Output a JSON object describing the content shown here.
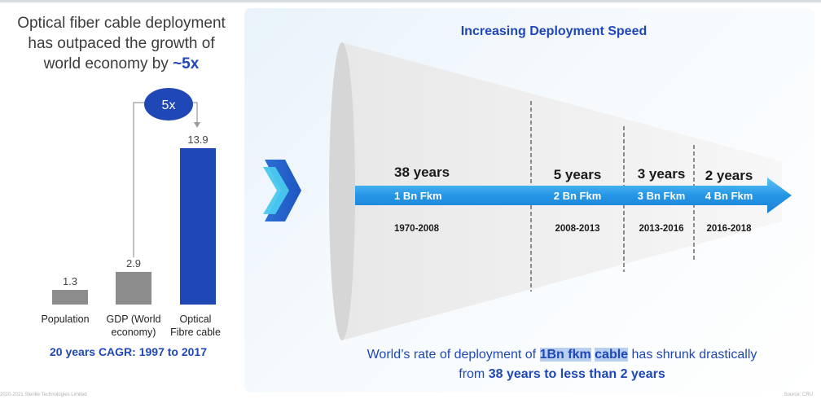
{
  "left_heading": {
    "line1": "Optical fiber cable deployment",
    "line2": "has outpaced the growth of",
    "line3_prefix": "world economy by ",
    "line3_emph": "~5x"
  },
  "multiplier_badge": "5x",
  "cagr_label": "20 years CAGR: 1997 to 2017",
  "right_heading": "Increasing Deployment Speed",
  "footer": {
    "line1_prefix": "World’s rate of deployment of ",
    "line1_hl1": "1Bn fkm",
    "line1_hl2": "cable",
    "line1_suffix": " has shrunk drastically",
    "line2_prefix": "from ",
    "line2_bold": "38 years to  less than 2 years"
  },
  "footnote": "2020-2021 Sterlite Technologies Limited",
  "source_note": "Source: CRU",
  "colors": {
    "accent_blue": "#1f47b6",
    "bar_gray": "#8c8c8c",
    "arrow_blue": "#1e8fe0",
    "chevron_dark": "#1f5fc7",
    "chevron_light": "#49c8ee"
  },
  "chart_data": [
    {
      "type": "bar",
      "categories": [
        "Population",
        "GDP (World economy)",
        "Optical Fibre cable"
      ],
      "category_lines": [
        [
          "Population"
        ],
        [
          "GDP (World",
          "economy)"
        ],
        [
          "Optical",
          "Fibre cable"
        ]
      ],
      "values": [
        1.3,
        2.9,
        13.9
      ],
      "value_labels": [
        "1.3",
        "2.9",
        "13.9"
      ],
      "bar_colors": [
        "#8c8c8c",
        "#8c8c8c",
        "#1f47b6"
      ],
      "ylim": [
        0,
        13.9
      ],
      "grid": false,
      "title": "",
      "xlabel": "",
      "ylabel": ""
    },
    {
      "type": "timeline",
      "title": "Increasing Deployment Speed",
      "segments": [
        {
          "duration": "38 years",
          "volume": "1 Bn Fkm",
          "period": "1970-2008"
        },
        {
          "duration": "5 years",
          "volume": "2 Bn Fkm",
          "period": "2008-2013"
        },
        {
          "duration": "3 years",
          "volume": "3 Bn Fkm",
          "period": "2013-2016"
        },
        {
          "duration": "2 years",
          "volume": "4 Bn Fkm",
          "period": "2016-2018"
        }
      ]
    }
  ]
}
